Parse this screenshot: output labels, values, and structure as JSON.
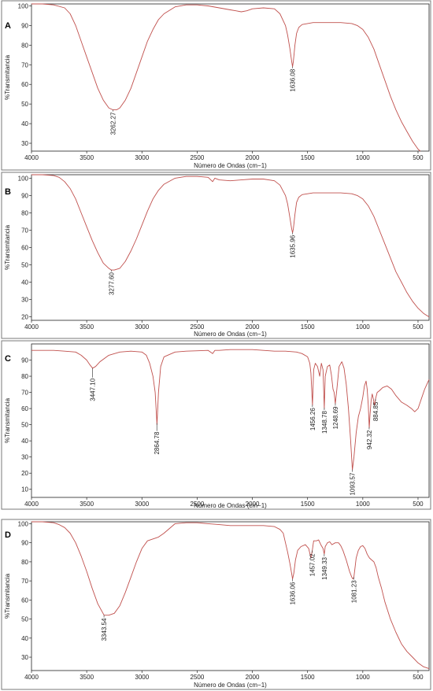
{
  "style": {
    "line_color": "#c0504d",
    "frame_color": "#7a7a7a",
    "background": "#ffffff"
  },
  "chart_data": [
    {
      "type": "line",
      "panel": "A",
      "xlabel": "Número de Ondas (cm−1)",
      "ylabel": "%Transmitancia",
      "xlim": [
        4000,
        400
      ],
      "ylim": [
        26,
        101
      ],
      "xticks": [
        4000,
        3500,
        3000,
        2500,
        2000,
        1500,
        1000,
        500
      ],
      "yticks": [
        30,
        40,
        50,
        60,
        70,
        80,
        90,
        100
      ],
      "series": [
        {
          "x": [
            4000,
            3900,
            3800,
            3700,
            3650,
            3600,
            3550,
            3500,
            3450,
            3400,
            3350,
            3300,
            3262,
            3230,
            3200,
            3150,
            3100,
            3050,
            3000,
            2950,
            2900,
            2850,
            2800,
            2700,
            2600,
            2500,
            2400,
            2300,
            2200,
            2150,
            2100,
            2050,
            2000,
            1900,
            1800,
            1750,
            1700,
            1680,
            1660,
            1645,
            1636,
            1628,
            1615,
            1600,
            1580,
            1550,
            1500,
            1450,
            1400,
            1300,
            1200,
            1100,
            1050,
            1000,
            950,
            900,
            850,
            800,
            750,
            700,
            650,
            600,
            550,
            500,
            480
          ],
          "y": [
            101,
            101,
            100.5,
            99,
            96,
            90,
            82,
            74,
            66,
            58,
            52,
            48,
            47,
            47,
            48,
            52,
            58,
            66,
            74,
            82,
            88,
            93,
            96,
            99.5,
            100.5,
            100.5,
            100,
            99,
            98,
            97.5,
            97,
            97.5,
            98.5,
            99,
            98.5,
            96,
            90,
            85,
            78,
            72,
            69,
            72,
            80,
            86,
            89,
            90.5,
            91,
            91.5,
            91.5,
            91.5,
            91.5,
            91,
            90,
            88,
            84,
            78,
            70,
            62,
            54,
            47,
            41,
            36,
            31,
            27,
            26
          ]
        }
      ],
      "annotations": [
        "3262.27",
        "1636.08"
      ]
    },
    {
      "type": "line",
      "panel": "B",
      "xlabel": "Número de Ondas (cm−1)",
      "ylabel": "%Transmitancia",
      "xlim": [
        4000,
        400
      ],
      "ylim": [
        18,
        102
      ],
      "xticks": [
        4000,
        3500,
        3000,
        2500,
        2000,
        1500,
        1000,
        500
      ],
      "yticks": [
        20,
        30,
        40,
        50,
        60,
        70,
        80,
        90,
        100
      ],
      "series": [
        {
          "x": [
            4000,
            3900,
            3800,
            3750,
            3700,
            3650,
            3600,
            3550,
            3500,
            3450,
            3400,
            3350,
            3300,
            3277,
            3250,
            3200,
            3150,
            3100,
            3050,
            3000,
            2950,
            2900,
            2850,
            2800,
            2700,
            2600,
            2500,
            2400,
            2360,
            2340,
            2300,
            2200,
            2100,
            2000,
            1900,
            1800,
            1750,
            1700,
            1680,
            1660,
            1645,
            1636,
            1628,
            1615,
            1600,
            1580,
            1550,
            1500,
            1450,
            1400,
            1300,
            1200,
            1100,
            1050,
            1000,
            950,
            900,
            850,
            800,
            750,
            700,
            650,
            600,
            550,
            500,
            450,
            400
          ],
          "y": [
            102,
            102,
            101.5,
            100.5,
            98,
            94,
            88,
            80,
            72,
            64,
            57,
            51,
            48,
            47,
            47,
            48,
            52,
            58,
            65,
            73,
            81,
            88,
            93,
            96.5,
            100,
            101,
            101,
            100.5,
            98,
            100,
            99,
            98.5,
            99,
            99.5,
            99.5,
            98.5,
            96,
            90,
            85,
            77,
            71,
            68.5,
            71,
            79,
            86,
            89,
            90.5,
            91,
            91.5,
            91.5,
            91.5,
            91.5,
            91,
            90,
            88,
            84,
            78,
            70,
            62,
            54,
            46,
            40,
            34,
            29,
            25,
            22,
            20
          ]
        }
      ],
      "annotations": [
        "3277.60",
        "1635.96"
      ]
    },
    {
      "type": "line",
      "panel": "C",
      "xlabel": "Número de Ondas (cm−1)",
      "ylabel": "%Transmitancia",
      "xlim": [
        4000,
        400
      ],
      "ylim": [
        5,
        100
      ],
      "xticks": [
        4000,
        3500,
        3000,
        2500,
        2000,
        1500,
        1000,
        500
      ],
      "yticks": [
        10,
        20,
        30,
        40,
        50,
        60,
        70,
        80,
        90
      ],
      "series": [
        {
          "x": [
            4000,
            3800,
            3700,
            3600,
            3550,
            3500,
            3470,
            3447,
            3420,
            3380,
            3300,
            3200,
            3100,
            3000,
            2960,
            2930,
            2900,
            2880,
            2864,
            2850,
            2830,
            2800,
            2700,
            2600,
            2400,
            2360,
            2340,
            2300,
            2200,
            2100,
            2000,
            1900,
            1800,
            1700,
            1600,
            1550,
            1500,
            1480,
            1470,
            1456,
            1445,
            1430,
            1410,
            1390,
            1375,
            1360,
            1349,
            1340,
            1320,
            1300,
            1285,
            1270,
            1260,
            1249,
            1235,
            1215,
            1190,
            1170,
            1150,
            1130,
            1110,
            1094,
            1080,
            1060,
            1040,
            1020,
            1000,
            985,
            970,
            960,
            950,
            942,
            935,
            925,
            915,
            905,
            895,
            885,
            870,
            850,
            820,
            780,
            740,
            700,
            650,
            600,
            560,
            530,
            500,
            470,
            440,
            420,
            400
          ],
          "y": [
            96,
            96,
            95.5,
            95,
            93,
            90,
            87,
            85,
            86,
            89,
            93,
            95,
            95.5,
            95,
            93,
            88,
            80,
            70,
            50,
            70,
            86,
            92,
            95,
            95.5,
            96,
            94,
            96,
            96,
            96.5,
            96.5,
            96.5,
            96,
            95.5,
            95.5,
            95,
            94,
            92,
            88,
            82,
            62,
            84,
            88,
            86,
            80,
            88,
            84,
            60,
            80,
            86,
            87,
            81,
            72,
            70,
            63,
            72,
            86,
            89,
            85,
            75,
            60,
            40,
            22,
            30,
            45,
            55,
            60,
            67,
            74,
            77,
            72,
            62,
            48,
            56,
            65,
            69,
            66,
            62,
            66,
            70,
            71,
            73,
            74,
            72,
            68,
            64,
            62,
            60,
            58,
            60,
            66,
            72,
            75,
            78
          ]
        }
      ],
      "annotations": [
        "3447.10",
        "2864.78",
        "1456.26",
        "1348.78",
        "1248.69",
        "1093.57",
        "942.32",
        "884.85"
      ]
    },
    {
      "type": "line",
      "panel": "D",
      "xlabel": "Número de Ondas (cm−1)",
      "ylabel": "%Transmitancia",
      "xlim": [
        4000,
        400
      ],
      "ylim": [
        23,
        101
      ],
      "xticks": [
        4000,
        3500,
        3000,
        2500,
        2000,
        1500,
        1000,
        500
      ],
      "yticks": [
        30,
        40,
        50,
        60,
        70,
        80,
        90,
        100
      ],
      "series": [
        {
          "x": [
            4000,
            3900,
            3800,
            3750,
            3700,
            3650,
            3600,
            3550,
            3500,
            3450,
            3400,
            3343,
            3300,
            3250,
            3200,
            3150,
            3100,
            3050,
            3000,
            2950,
            2900,
            2850,
            2800,
            2700,
            2600,
            2500,
            2400,
            2300,
            2200,
            2100,
            2000,
            1900,
            1800,
            1750,
            1720,
            1700,
            1680,
            1660,
            1645,
            1636,
            1625,
            1610,
            1590,
            1560,
            1520,
            1490,
            1470,
            1457,
            1445,
            1420,
            1400,
            1380,
            1360,
            1349,
            1340,
            1320,
            1300,
            1280,
            1250,
            1220,
            1200,
            1180,
            1150,
            1120,
            1100,
            1090,
            1081,
            1072,
            1060,
            1040,
            1020,
            1000,
            980,
            960,
            940,
            920,
            900,
            880,
            860,
            830,
            800,
            750,
            700,
            650,
            600,
            550,
            500,
            450,
            400
          ],
          "y": [
            101,
            101,
            100.5,
            99.5,
            98,
            95,
            90,
            83,
            75,
            66,
            58,
            52,
            52,
            53,
            57,
            64,
            72,
            80,
            87,
            91,
            92,
            93,
            95,
            100,
            100.5,
            100.5,
            100,
            99.5,
            99,
            99,
            99,
            99,
            98.5,
            97,
            95,
            90,
            85,
            79,
            74,
            71,
            74,
            81,
            86,
            88,
            89,
            87,
            82,
            86,
            91,
            91,
            91.5,
            89,
            87,
            84,
            88,
            90,
            90.5,
            89,
            90,
            90,
            88.5,
            86,
            81,
            75,
            72,
            71,
            72,
            76,
            82,
            86,
            88,
            88.5,
            87,
            84,
            82,
            81,
            80,
            77,
            72,
            66,
            59,
            50,
            43,
            37,
            33,
            30,
            27,
            25,
            24
          ]
        }
      ],
      "annotations": [
        "3343.54",
        "1636.06",
        "1457.02",
        "1349.33",
        "1081.23"
      ]
    }
  ]
}
